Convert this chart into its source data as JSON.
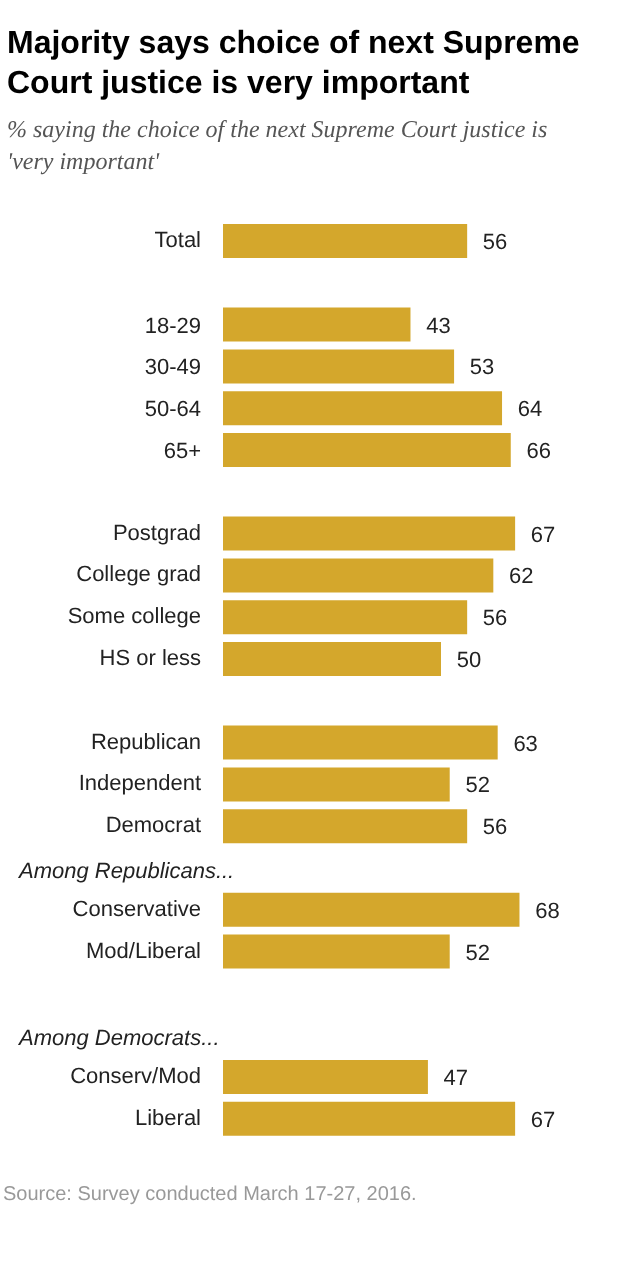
{
  "chart_data": {
    "type": "bar",
    "orientation": "horizontal",
    "data_labels": true,
    "title": "Majority says choice of next Supreme Court justice is very important",
    "subtitle": "% saying the choice of the next Supreme Court justice is 'very important'",
    "categories": [
      "Total",
      null,
      "18-29",
      "30-49",
      "50-64",
      "65+",
      null,
      "Postgrad",
      "College grad",
      "Some college",
      "HS or less",
      null,
      "Republican",
      "Independent",
      "Democrat",
      null,
      "Conservative",
      "Mod/Liberal",
      null,
      null,
      "Conserv/Mod",
      "Liberal"
    ],
    "values": [
      56,
      null,
      43,
      53,
      64,
      66,
      null,
      67,
      62,
      56,
      50,
      null,
      63,
      52,
      56,
      null,
      68,
      52,
      null,
      null,
      47,
      67
    ],
    "color": "#d4a72c",
    "annotations": [
      "Among Republicans...",
      "Among Democrats...",
      "Source: Survey conducted March 17-27, 2016."
    ]
  }
}
